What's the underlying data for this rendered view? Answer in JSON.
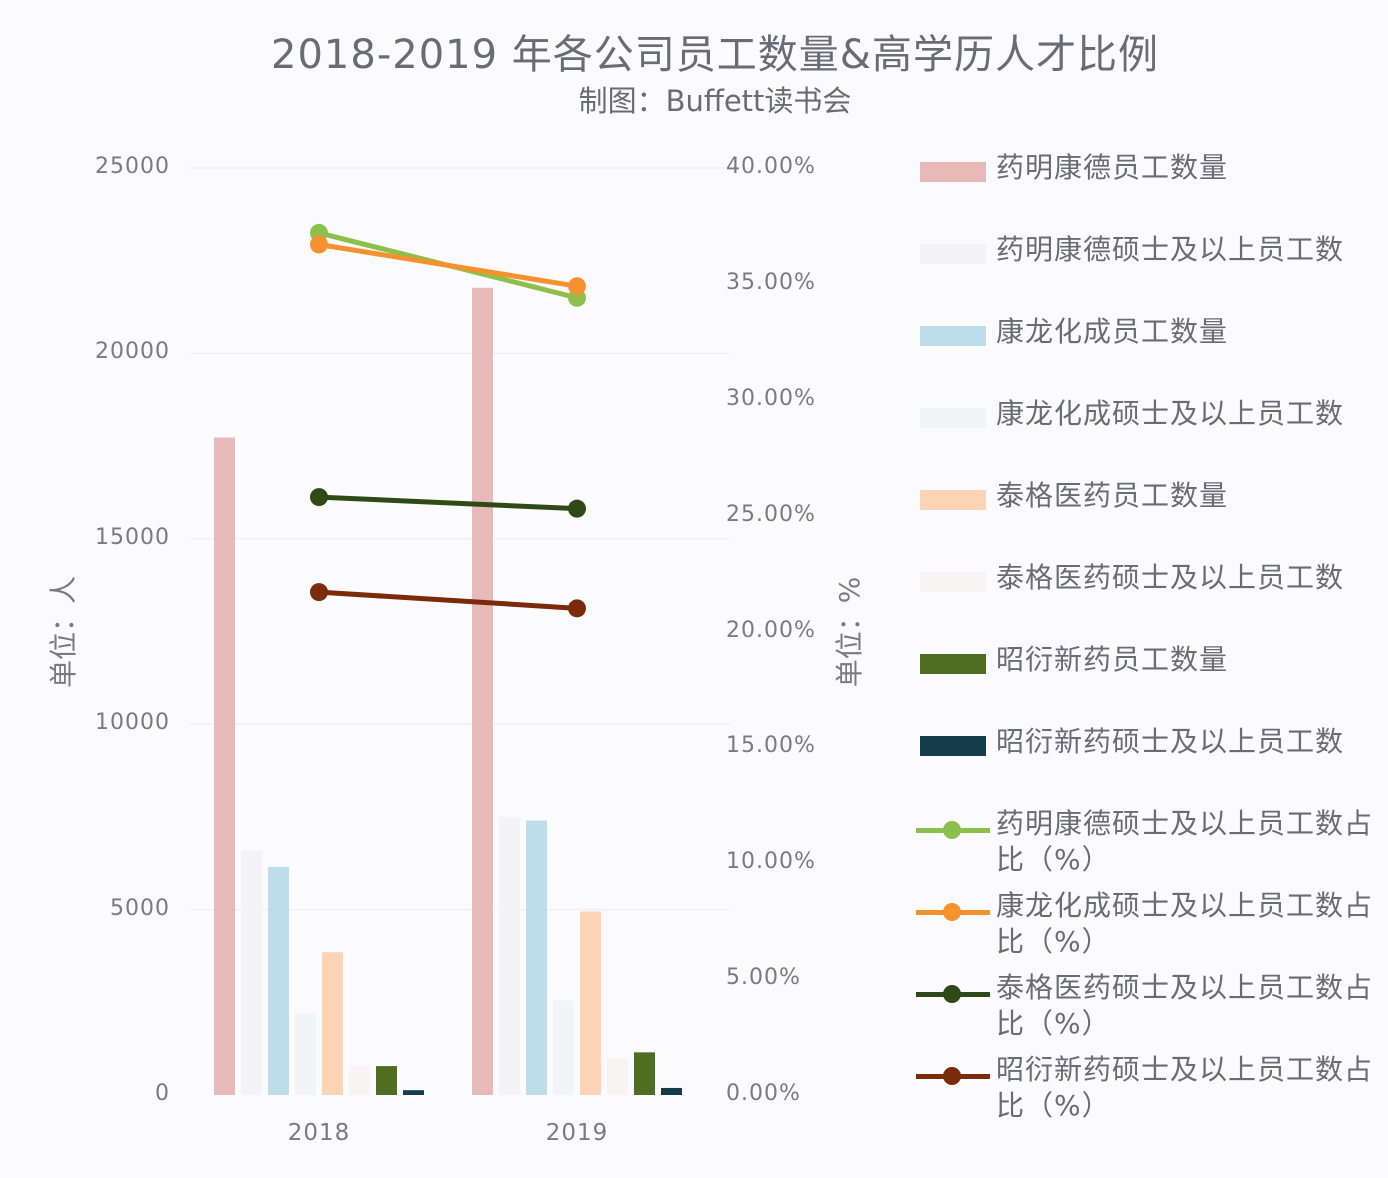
{
  "chart_data": {
    "type": "bar+line",
    "title": "2018-2019 年各公司员工数量&高学历人才比例",
    "subtitle": "制图：Buffett读书会",
    "categories": [
      "2018",
      "2019"
    ],
    "ylabel_left": "单位：人",
    "ylabel_right": "单位：%",
    "ylim_left": [
      0,
      25000
    ],
    "ylim_right": [
      0,
      40
    ],
    "yticks_left": [
      "25000",
      "20000",
      "15000",
      "10000",
      "5000",
      "0"
    ],
    "yticks_right": [
      "40.00%",
      "35.00%",
      "30.00%",
      "25.00%",
      "20.00%",
      "15.00%",
      "10.00%",
      "5.00%",
      "0.00%"
    ],
    "grid": true,
    "legend_position": "right",
    "bar_series": [
      {
        "name": "药明康德员工数量",
        "values": [
          17730,
          21770
        ],
        "color": "#e8b9b9"
      },
      {
        "name": "药明康德硕士及以上员工数",
        "values": [
          6600,
          7500
        ],
        "color": "#f4f3f6"
      },
      {
        "name": "康龙化成员工数量",
        "values": [
          6150,
          7400
        ],
        "color": "#bcdde9"
      },
      {
        "name": "康龙化成硕士及以上员工数",
        "values": [
          2200,
          2550
        ],
        "color": "#f2f4f8"
      },
      {
        "name": "泰格医药员工数量",
        "values": [
          3850,
          4950
        ],
        "color": "#fdd3b6"
      },
      {
        "name": "泰格医药硕士及以上员工数",
        "values": [
          800,
          1000
        ],
        "color": "#f7f5f4"
      },
      {
        "name": "昭衍新药员工数量",
        "values": [
          780,
          1150
        ],
        "color": "#4f6e22"
      },
      {
        "name": "昭衍新药硕士及以上员工数",
        "values": [
          130,
          190
        ],
        "color": "#153c4a"
      }
    ],
    "line_series": [
      {
        "name": "药明康德硕士及以上员工数占比（%）",
        "values": [
          37.2,
          34.4
        ],
        "color": "#8cc04b"
      },
      {
        "name": "康龙化成硕士及以上员工数占比（%）",
        "values": [
          36.7,
          34.9
        ],
        "color": "#f5922f"
      },
      {
        "name": "泰格医药硕士及以上员工数占比（%）",
        "values": [
          25.8,
          25.3
        ],
        "color": "#2f4a17"
      },
      {
        "name": "昭衍新药硕士及以上员工数占比（%）",
        "values": [
          21.7,
          21.0
        ],
        "color": "#7b2a0a"
      }
    ]
  }
}
